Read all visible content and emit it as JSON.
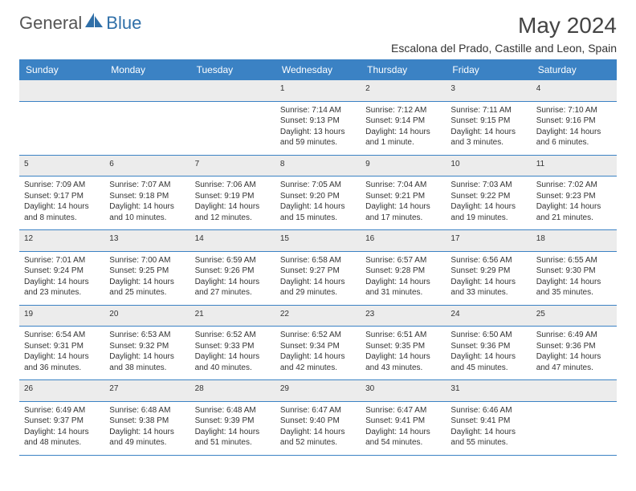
{
  "logo": {
    "text1": "General",
    "text2": "Blue",
    "color1": "#6b6b6b",
    "color2": "#2f6fa8",
    "shape_color": "#2f6fa8"
  },
  "title": "May 2024",
  "location": "Escalona del Prado, Castille and Leon, Spain",
  "header_bg": "#3b82c4",
  "daybar_bg": "#ececec",
  "weekdays": [
    "Sunday",
    "Monday",
    "Tuesday",
    "Wednesday",
    "Thursday",
    "Friday",
    "Saturday"
  ],
  "weeks": [
    [
      null,
      null,
      null,
      {
        "n": "1",
        "sr": "Sunrise: 7:14 AM",
        "ss": "Sunset: 9:13 PM",
        "dl": "Daylight: 13 hours and 59 minutes."
      },
      {
        "n": "2",
        "sr": "Sunrise: 7:12 AM",
        "ss": "Sunset: 9:14 PM",
        "dl": "Daylight: 14 hours and 1 minute."
      },
      {
        "n": "3",
        "sr": "Sunrise: 7:11 AM",
        "ss": "Sunset: 9:15 PM",
        "dl": "Daylight: 14 hours and 3 minutes."
      },
      {
        "n": "4",
        "sr": "Sunrise: 7:10 AM",
        "ss": "Sunset: 9:16 PM",
        "dl": "Daylight: 14 hours and 6 minutes."
      }
    ],
    [
      {
        "n": "5",
        "sr": "Sunrise: 7:09 AM",
        "ss": "Sunset: 9:17 PM",
        "dl": "Daylight: 14 hours and 8 minutes."
      },
      {
        "n": "6",
        "sr": "Sunrise: 7:07 AM",
        "ss": "Sunset: 9:18 PM",
        "dl": "Daylight: 14 hours and 10 minutes."
      },
      {
        "n": "7",
        "sr": "Sunrise: 7:06 AM",
        "ss": "Sunset: 9:19 PM",
        "dl": "Daylight: 14 hours and 12 minutes."
      },
      {
        "n": "8",
        "sr": "Sunrise: 7:05 AM",
        "ss": "Sunset: 9:20 PM",
        "dl": "Daylight: 14 hours and 15 minutes."
      },
      {
        "n": "9",
        "sr": "Sunrise: 7:04 AM",
        "ss": "Sunset: 9:21 PM",
        "dl": "Daylight: 14 hours and 17 minutes."
      },
      {
        "n": "10",
        "sr": "Sunrise: 7:03 AM",
        "ss": "Sunset: 9:22 PM",
        "dl": "Daylight: 14 hours and 19 minutes."
      },
      {
        "n": "11",
        "sr": "Sunrise: 7:02 AM",
        "ss": "Sunset: 9:23 PM",
        "dl": "Daylight: 14 hours and 21 minutes."
      }
    ],
    [
      {
        "n": "12",
        "sr": "Sunrise: 7:01 AM",
        "ss": "Sunset: 9:24 PM",
        "dl": "Daylight: 14 hours and 23 minutes."
      },
      {
        "n": "13",
        "sr": "Sunrise: 7:00 AM",
        "ss": "Sunset: 9:25 PM",
        "dl": "Daylight: 14 hours and 25 minutes."
      },
      {
        "n": "14",
        "sr": "Sunrise: 6:59 AM",
        "ss": "Sunset: 9:26 PM",
        "dl": "Daylight: 14 hours and 27 minutes."
      },
      {
        "n": "15",
        "sr": "Sunrise: 6:58 AM",
        "ss": "Sunset: 9:27 PM",
        "dl": "Daylight: 14 hours and 29 minutes."
      },
      {
        "n": "16",
        "sr": "Sunrise: 6:57 AM",
        "ss": "Sunset: 9:28 PM",
        "dl": "Daylight: 14 hours and 31 minutes."
      },
      {
        "n": "17",
        "sr": "Sunrise: 6:56 AM",
        "ss": "Sunset: 9:29 PM",
        "dl": "Daylight: 14 hours and 33 minutes."
      },
      {
        "n": "18",
        "sr": "Sunrise: 6:55 AM",
        "ss": "Sunset: 9:30 PM",
        "dl": "Daylight: 14 hours and 35 minutes."
      }
    ],
    [
      {
        "n": "19",
        "sr": "Sunrise: 6:54 AM",
        "ss": "Sunset: 9:31 PM",
        "dl": "Daylight: 14 hours and 36 minutes."
      },
      {
        "n": "20",
        "sr": "Sunrise: 6:53 AM",
        "ss": "Sunset: 9:32 PM",
        "dl": "Daylight: 14 hours and 38 minutes."
      },
      {
        "n": "21",
        "sr": "Sunrise: 6:52 AM",
        "ss": "Sunset: 9:33 PM",
        "dl": "Daylight: 14 hours and 40 minutes."
      },
      {
        "n": "22",
        "sr": "Sunrise: 6:52 AM",
        "ss": "Sunset: 9:34 PM",
        "dl": "Daylight: 14 hours and 42 minutes."
      },
      {
        "n": "23",
        "sr": "Sunrise: 6:51 AM",
        "ss": "Sunset: 9:35 PM",
        "dl": "Daylight: 14 hours and 43 minutes."
      },
      {
        "n": "24",
        "sr": "Sunrise: 6:50 AM",
        "ss": "Sunset: 9:36 PM",
        "dl": "Daylight: 14 hours and 45 minutes."
      },
      {
        "n": "25",
        "sr": "Sunrise: 6:49 AM",
        "ss": "Sunset: 9:36 PM",
        "dl": "Daylight: 14 hours and 47 minutes."
      }
    ],
    [
      {
        "n": "26",
        "sr": "Sunrise: 6:49 AM",
        "ss": "Sunset: 9:37 PM",
        "dl": "Daylight: 14 hours and 48 minutes."
      },
      {
        "n": "27",
        "sr": "Sunrise: 6:48 AM",
        "ss": "Sunset: 9:38 PM",
        "dl": "Daylight: 14 hours and 49 minutes."
      },
      {
        "n": "28",
        "sr": "Sunrise: 6:48 AM",
        "ss": "Sunset: 9:39 PM",
        "dl": "Daylight: 14 hours and 51 minutes."
      },
      {
        "n": "29",
        "sr": "Sunrise: 6:47 AM",
        "ss": "Sunset: 9:40 PM",
        "dl": "Daylight: 14 hours and 52 minutes."
      },
      {
        "n": "30",
        "sr": "Sunrise: 6:47 AM",
        "ss": "Sunset: 9:41 PM",
        "dl": "Daylight: 14 hours and 54 minutes."
      },
      {
        "n": "31",
        "sr": "Sunrise: 6:46 AM",
        "ss": "Sunset: 9:41 PM",
        "dl": "Daylight: 14 hours and 55 minutes."
      },
      null
    ]
  ]
}
